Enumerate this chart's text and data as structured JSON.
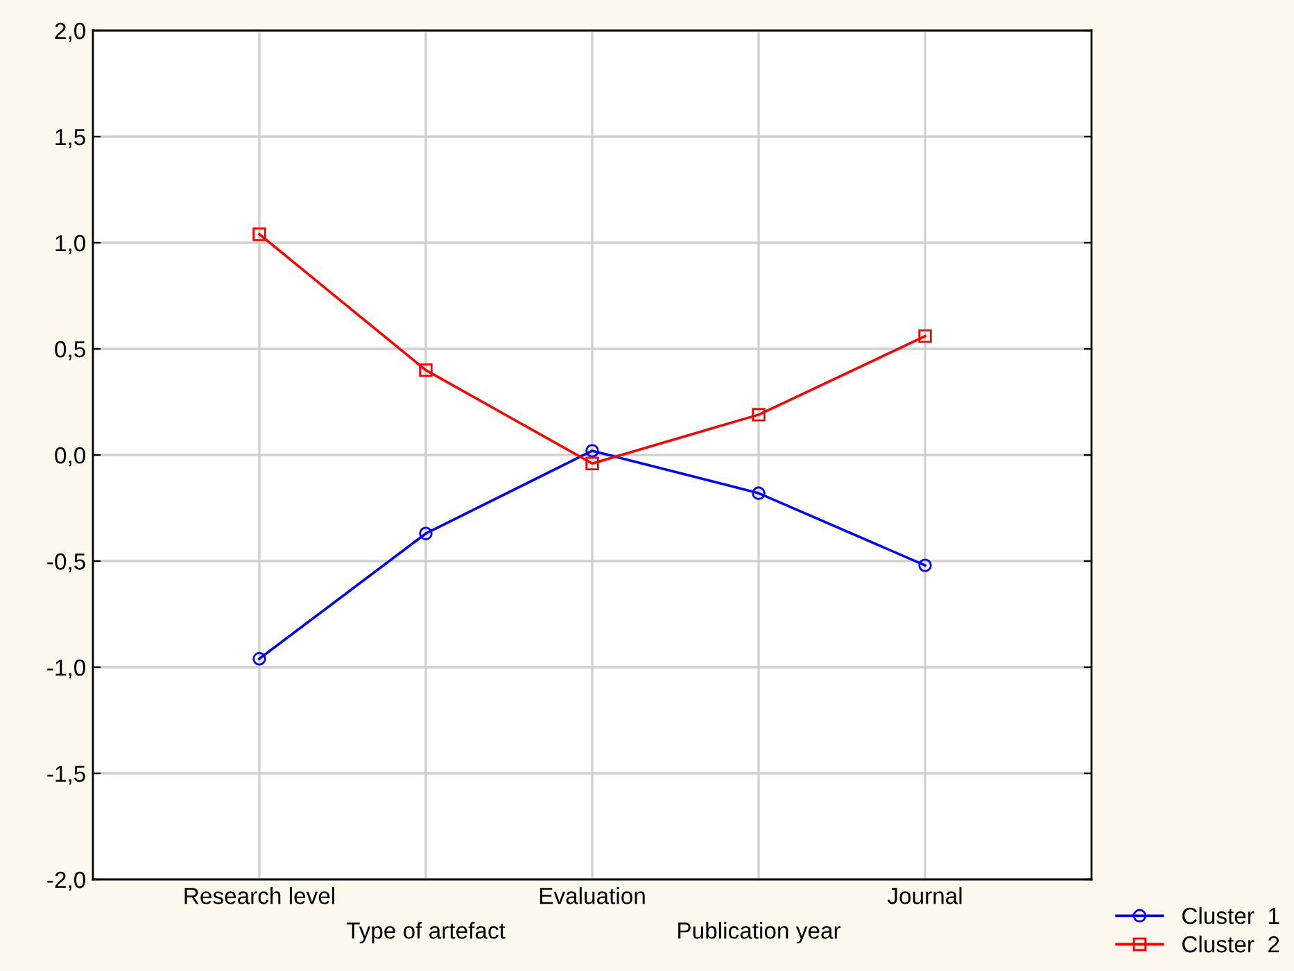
{
  "chart_data": {
    "type": "line",
    "categories": [
      "Research level",
      "Type of artefact",
      "Evaluation",
      "Publication year",
      "Journal"
    ],
    "series": [
      {
        "name": "Cluster  1",
        "color": "#0000ff",
        "marker": "circle",
        "values": [
          -0.96,
          -0.37,
          0.02,
          -0.18,
          -0.52
        ]
      },
      {
        "name": "Cluster  2",
        "color": "#ff0000",
        "marker": "square",
        "values": [
          1.04,
          0.4,
          -0.04,
          0.19,
          0.56
        ]
      }
    ],
    "ylim": [
      -2.0,
      2.0
    ],
    "yticks": [
      {
        "value": -2.0,
        "label": "-2,0"
      },
      {
        "value": -1.5,
        "label": "-1,5"
      },
      {
        "value": -1.0,
        "label": "-1,0"
      },
      {
        "value": -0.5,
        "label": "-0,5"
      },
      {
        "value": 0.0,
        "label": "0,0"
      },
      {
        "value": 0.5,
        "label": "0,5"
      },
      {
        "value": 1.0,
        "label": "1,0"
      },
      {
        "value": 1.5,
        "label": "1,5"
      },
      {
        "value": 2.0,
        "label": "2,0"
      }
    ],
    "grid": true,
    "legend": "bottom right",
    "line_style": "solid"
  }
}
